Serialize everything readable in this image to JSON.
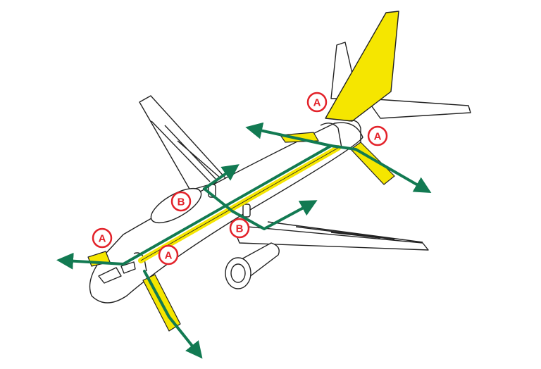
{
  "colors": {
    "green": "#127a52",
    "yellow": "#f5e600",
    "red": "#e3222a",
    "outline": "#222222",
    "fill": "#ffffff"
  },
  "labels": [
    {
      "id": "label-a-tail-left",
      "text": "A"
    },
    {
      "id": "label-a-tail-right",
      "text": "A"
    },
    {
      "id": "label-b-wing-left",
      "text": "B"
    },
    {
      "id": "label-b-wing-right",
      "text": "B"
    },
    {
      "id": "label-a-nose-left",
      "text": "A"
    },
    {
      "id": "label-a-nose-right",
      "text": "A"
    }
  ]
}
